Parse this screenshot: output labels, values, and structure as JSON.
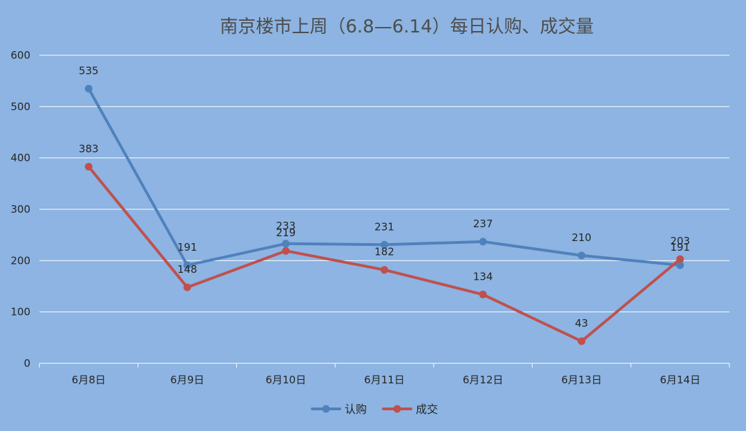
{
  "chart_data": {
    "type": "line",
    "title": "南京楼市上周（6.8—6.14）每日认购、成交量",
    "xlabel": "",
    "ylabel": "",
    "categories": [
      "6月8日",
      "6月9日",
      "6月10日",
      "6月11日",
      "6月12日",
      "6月13日",
      "6月14日"
    ],
    "ylim": [
      0,
      600
    ],
    "yticks": [
      0,
      100,
      200,
      300,
      400,
      500,
      600
    ],
    "grid": true,
    "legend": "bottom",
    "series": [
      {
        "name": "认购",
        "color": "#4f81bd",
        "values": [
          535,
          191,
          233,
          231,
          237,
          210,
          191
        ]
      },
      {
        "name": "成交",
        "color": "#c0504d",
        "values": [
          383,
          148,
          219,
          182,
          134,
          43,
          203
        ]
      }
    ]
  },
  "colors": {
    "background": "#8db4e2",
    "grid": "#ffffff",
    "axis": "#ffffff"
  }
}
